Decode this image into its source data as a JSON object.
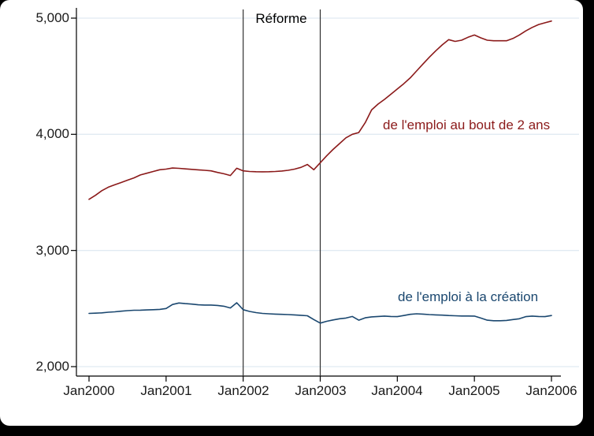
{
  "figure": {
    "background": "#000000",
    "canvas_color": "#ffffff",
    "grid_color": "#e0eaf2",
    "axis_color": "#000000",
    "reference_line_color": "#303030"
  },
  "chart_data": {
    "type": "line",
    "title": "",
    "xlabel": "",
    "ylabel": "",
    "grid": true,
    "frequency": "monthly",
    "x_range": [
      "Jan2000",
      "Jan2006"
    ],
    "ylim": [
      2000,
      5000
    ],
    "x_tick_labels": [
      "Jan2000",
      "Jan2001",
      "Jan2002",
      "Jan2003",
      "Jan2004",
      "Jan2005",
      "Jan2006"
    ],
    "y_tick_labels": [
      "2,000",
      "3,000",
      "4,000",
      "5,000"
    ],
    "y_tick_values": [
      2000,
      3000,
      4000,
      5000
    ],
    "reform": {
      "label": "Réforme",
      "between": [
        "Jan2002",
        "Jan2003"
      ]
    },
    "series": [
      {
        "name": "de l'emploi au bout de 2 ans",
        "color": "#8b1a1a",
        "start": "Jan2000",
        "values": [
          3440,
          3475,
          3515,
          3545,
          3565,
          3585,
          3605,
          3625,
          3650,
          3665,
          3680,
          3695,
          3700,
          3710,
          3707,
          3702,
          3698,
          3694,
          3690,
          3685,
          3672,
          3660,
          3645,
          3708,
          3685,
          3680,
          3678,
          3677,
          3678,
          3680,
          3684,
          3690,
          3700,
          3715,
          3740,
          3695,
          3755,
          3815,
          3870,
          3920,
          3970,
          4000,
          4015,
          4100,
          4210,
          4260,
          4300,
          4345,
          4390,
          4435,
          4485,
          4545,
          4605,
          4665,
          4720,
          4770,
          4815,
          4800,
          4810,
          4835,
          4855,
          4830,
          4810,
          4805,
          4805,
          4805,
          4825,
          4855,
          4890,
          4920,
          4945,
          4960,
          4975
        ]
      },
      {
        "name": "de l'emploi à la création",
        "color": "#1a476f",
        "start": "Jan2000",
        "values": [
          2458,
          2460,
          2463,
          2468,
          2472,
          2477,
          2482,
          2485,
          2486,
          2488,
          2490,
          2493,
          2500,
          2535,
          2548,
          2542,
          2538,
          2532,
          2530,
          2530,
          2527,
          2520,
          2505,
          2550,
          2490,
          2475,
          2465,
          2458,
          2455,
          2452,
          2450,
          2448,
          2445,
          2442,
          2438,
          2405,
          2375,
          2390,
          2402,
          2412,
          2418,
          2432,
          2400,
          2420,
          2428,
          2432,
          2435,
          2432,
          2430,
          2440,
          2450,
          2455,
          2452,
          2448,
          2445,
          2443,
          2440,
          2438,
          2436,
          2436,
          2435,
          2418,
          2400,
          2395,
          2395,
          2398,
          2405,
          2412,
          2430,
          2435,
          2432,
          2430,
          2440
        ]
      }
    ]
  }
}
